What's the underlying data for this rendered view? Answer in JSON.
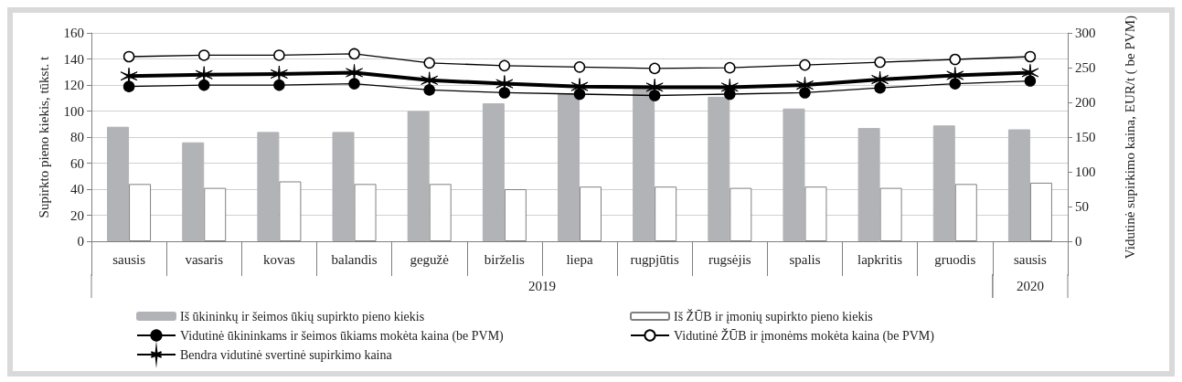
{
  "chart_data": {
    "type": "bar",
    "categories": [
      "sausis",
      "vasaris",
      "kovas",
      "balandis",
      "gegužė",
      "birželis",
      "liepa",
      "rugpjūtis",
      "rugsėjis",
      "spalis",
      "lapkritis",
      "gruodis",
      "sausis"
    ],
    "annotations": [
      "2019",
      "2020"
    ],
    "ylabel": "Supirkto pieno kiekis, tūkst. t",
    "y2label": "Vidutinė supirkimo kaina, EUR/t ( be PVM)",
    "ylim": [
      0,
      160
    ],
    "yticks": [
      0,
      20,
      40,
      60,
      80,
      100,
      120,
      140,
      160
    ],
    "y2lim": [
      0,
      300
    ],
    "y2ticks": [
      0,
      50,
      100,
      150,
      200,
      250,
      300
    ],
    "grid": "y",
    "legend": "bottom",
    "series": [
      {
        "name": "Iš ūkininkų ir šeimos ūkių supirkto pieno kiekis",
        "color": "#b2b3b6",
        "values": [
          88,
          76,
          84,
          84,
          100,
          106,
          113,
          118,
          111,
          102,
          87,
          89,
          86
        ]
      },
      {
        "name": "Iš ŽŪB ir įmonių supirkto pieno kiekis",
        "color": "#ffffff",
        "values": [
          44,
          41,
          46,
          44,
          44,
          40,
          42,
          42,
          41,
          42,
          41,
          44,
          45
        ]
      },
      {
        "name": "Vidutinė ūkininkams ir šeimos ūkiams mokėta kaina (be PVM)",
        "type": "line",
        "axis": "y2",
        "color": "#000000",
        "marker": "circle",
        "values": [
          223,
          225,
          225,
          227,
          218,
          214,
          212,
          210,
          212,
          214,
          221,
          227,
          231
        ]
      },
      {
        "name": "Vidutinė ŽŪB ir įmonėms mokėta kaina (be PVM)",
        "type": "line",
        "axis": "y2",
        "color": "#000000",
        "marker": "circle",
        "values": [
          266,
          268,
          268,
          270,
          257,
          253,
          251,
          249,
          250,
          254,
          258,
          262,
          266
        ]
      },
      {
        "name": "Bendra vidutinė svertinė supirkimo kaina",
        "type": "line",
        "axis": "y2",
        "color": "#000000",
        "marker": "cross",
        "values": [
          238,
          240,
          241,
          243,
          232,
          227,
          223,
          222,
          222,
          225,
          233,
          239,
          243
        ]
      }
    ]
  }
}
